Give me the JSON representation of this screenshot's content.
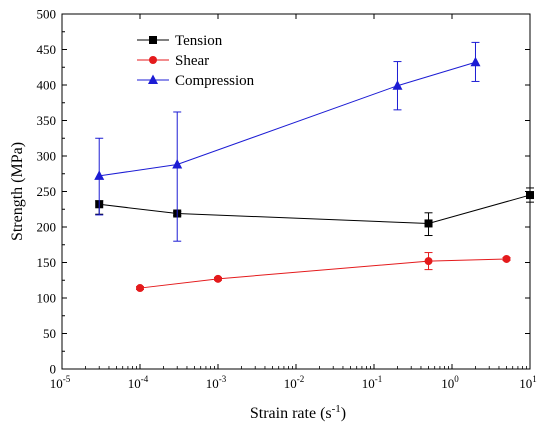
{
  "chart_data": {
    "type": "scatter",
    "title": "",
    "xlabel": {
      "base": "Strain rate (s",
      "sup": "-1",
      "tail": ")"
    },
    "ylabel": "Strength (MPa)",
    "xscale": "log",
    "xlim": [
      1e-05,
      10
    ],
    "ylim": [
      0,
      500
    ],
    "ytick_values": [
      0,
      50,
      100,
      150,
      200,
      250,
      300,
      350,
      400,
      450,
      500
    ],
    "ytick_labels": [
      "0",
      "50",
      "100",
      "150",
      "200",
      "250",
      "300",
      "350",
      "400",
      "450",
      "500"
    ],
    "xtick_exponents": [
      -5,
      -4,
      -3,
      -2,
      -1,
      0,
      1
    ],
    "xtick_labels": [
      {
        "base": "10",
        "sup": "-5"
      },
      {
        "base": "10",
        "sup": "-4"
      },
      {
        "base": "10",
        "sup": "-3"
      },
      {
        "base": "10",
        "sup": "-2"
      },
      {
        "base": "10",
        "sup": "-1"
      },
      {
        "base": "10",
        "sup": "0"
      },
      {
        "base": "10",
        "sup": "1"
      }
    ],
    "grid": false,
    "legend_position": "top-left",
    "series": [
      {
        "name": "Tension",
        "color": "#000000",
        "marker": "square",
        "x": [
          3e-05,
          0.0003,
          0.5,
          10
        ],
        "y": [
          232,
          219,
          205,
          245
        ],
        "err_low": [
          14,
          3,
          17,
          10
        ],
        "err_high": [
          5,
          3,
          15,
          10
        ]
      },
      {
        "name": "Shear",
        "color": "#e41a1c",
        "marker": "circle",
        "x": [
          0.0001,
          0.001,
          0.5,
          5
        ],
        "y": [
          114,
          127,
          152,
          155
        ],
        "err_low": [
          2,
          2,
          12,
          2
        ],
        "err_high": [
          2,
          2,
          12,
          2
        ]
      },
      {
        "name": "Compression",
        "color": "#1c1cd4",
        "marker": "triangle",
        "x": [
          3e-05,
          0.0003,
          0.2,
          2
        ],
        "y": [
          272,
          288,
          399,
          432
        ],
        "err_low": [
          55,
          108,
          34,
          27
        ],
        "err_high": [
          53,
          74,
          34,
          28
        ]
      }
    ]
  }
}
